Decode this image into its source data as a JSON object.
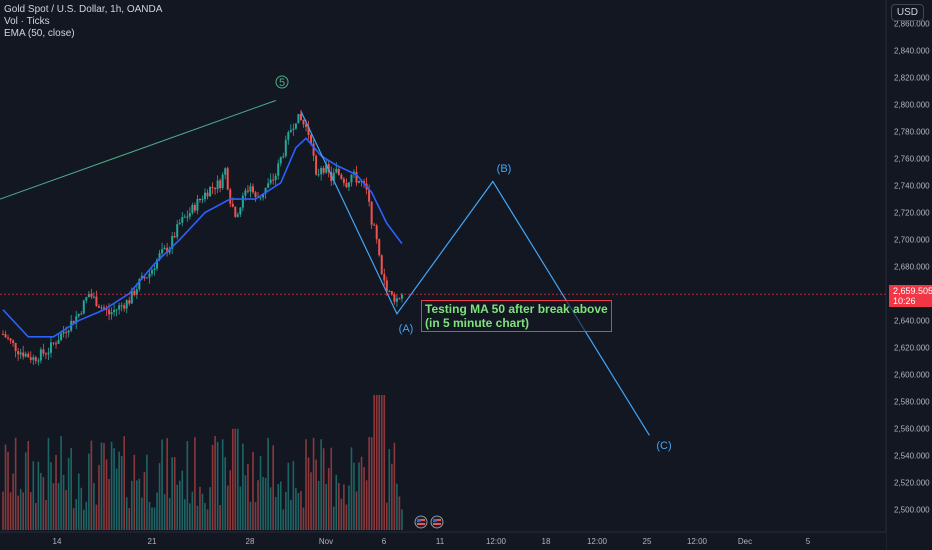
{
  "legend": {
    "line1": "Gold Spot / U.S. Dollar, 1h, OANDA",
    "line2": "Vol · Ticks",
    "line3": "EMA (50, close)"
  },
  "currency": "USD",
  "price_tag": {
    "price": "2,659.505",
    "countdown": "10:26"
  },
  "annotation": {
    "text": "Testing MA 50 after break above\n(in 5 minute chart)"
  },
  "wave_labels": {
    "five": "5",
    "a": "(A)",
    "b": "(B)",
    "c": "(C)"
  },
  "colors": {
    "background": "#131722",
    "up": "#26a69a",
    "down": "#ef5350",
    "ema": "#2962ff",
    "wave": "#42a5f5",
    "trend": "#4caf8a",
    "annotation_border": "#f23645",
    "annotation_text": "#80e27e"
  },
  "chart_data": {
    "type": "candlestick",
    "y_axis": {
      "ticks": [
        "2,860.000",
        "2,840.000",
        "2,820.000",
        "2,800.000",
        "2,780.000",
        "2,760.000",
        "2,740.000",
        "2,720.000",
        "2,700.000",
        "2,680.000",
        "2,660.000",
        "2,640.000",
        "2,620.000",
        "2,600.000",
        "2,580.000",
        "2,560.000",
        "2,540.000",
        "2,520.000",
        "2,500.000"
      ],
      "range": [
        2496,
        2870
      ]
    },
    "x_axis": {
      "ticks": [
        "14",
        "21",
        "28",
        "Nov",
        "6",
        "11",
        "12:00",
        "18",
        "12:00",
        "25",
        "12:00",
        "Dec",
        "5"
      ]
    },
    "current_price": 2659.505,
    "price_path": [
      [
        0,
        2630
      ],
      [
        3,
        2618
      ],
      [
        6,
        2612
      ],
      [
        9,
        2618
      ],
      [
        12,
        2632
      ],
      [
        15,
        2645
      ],
      [
        17,
        2660
      ],
      [
        19,
        2652
      ],
      [
        21,
        2645
      ],
      [
        23,
        2650
      ],
      [
        25,
        2655
      ],
      [
        27,
        2668
      ],
      [
        29,
        2675
      ],
      [
        31,
        2688
      ],
      [
        33,
        2695
      ],
      [
        35,
        2712
      ],
      [
        37,
        2720
      ],
      [
        39,
        2730
      ],
      [
        41,
        2738
      ],
      [
        43,
        2742
      ],
      [
        44,
        2752
      ],
      [
        45,
        2730
      ],
      [
        46,
        2718
      ],
      [
        47,
        2725
      ],
      [
        48,
        2735
      ],
      [
        49,
        2740
      ],
      [
        50,
        2730
      ],
      [
        51,
        2733
      ],
      [
        52,
        2738
      ],
      [
        53,
        2742
      ],
      [
        54,
        2748
      ],
      [
        55,
        2760
      ],
      [
        56,
        2770
      ],
      [
        57,
        2782
      ],
      [
        58,
        2790
      ],
      [
        59,
        2788
      ],
      [
        60,
        2783
      ],
      [
        61,
        2775
      ],
      [
        62,
        2745
      ],
      [
        63,
        2755
      ],
      [
        64,
        2752
      ],
      [
        65,
        2745
      ],
      [
        66,
        2750
      ],
      [
        67,
        2747
      ],
      [
        68,
        2742
      ],
      [
        69,
        2748
      ],
      [
        70,
        2745
      ],
      [
        71,
        2742
      ],
      [
        72,
        2735
      ],
      [
        73,
        2715
      ],
      [
        74,
        2698
      ],
      [
        75,
        2672
      ],
      [
        76,
        2662
      ],
      [
        77,
        2658
      ],
      [
        78,
        2656
      ],
      [
        79,
        2660
      ]
    ],
    "ema_path": [
      [
        0,
        2648
      ],
      [
        5,
        2628
      ],
      [
        10,
        2628
      ],
      [
        15,
        2640
      ],
      [
        20,
        2648
      ],
      [
        25,
        2660
      ],
      [
        30,
        2682
      ],
      [
        35,
        2700
      ],
      [
        40,
        2720
      ],
      [
        45,
        2730
      ],
      [
        50,
        2730
      ],
      [
        55,
        2742
      ],
      [
        58,
        2768
      ],
      [
        60,
        2775
      ],
      [
        63,
        2762
      ],
      [
        66,
        2755
      ],
      [
        70,
        2748
      ],
      [
        73,
        2735
      ],
      [
        76,
        2712
      ],
      [
        79,
        2697
      ]
    ],
    "elliott_waves": {
      "trend_line": {
        "from": {
          "bar": -8,
          "price": 2720
        },
        "to": {
          "bar": 54,
          "price": 2803
        }
      },
      "abc": [
        {
          "label": "5",
          "bar": 59,
          "price": 2795
        },
        {
          "label": "(A)",
          "bar": 78,
          "price": 2645
        },
        {
          "label": "(B)",
          "bar": 97,
          "price": 2743
        },
        {
          "label": "(C)",
          "bar": 128,
          "price": 2555
        }
      ]
    },
    "volume_panel": {
      "range_px": [
        395,
        530
      ]
    },
    "grid": false,
    "legend_position": "top-left"
  }
}
